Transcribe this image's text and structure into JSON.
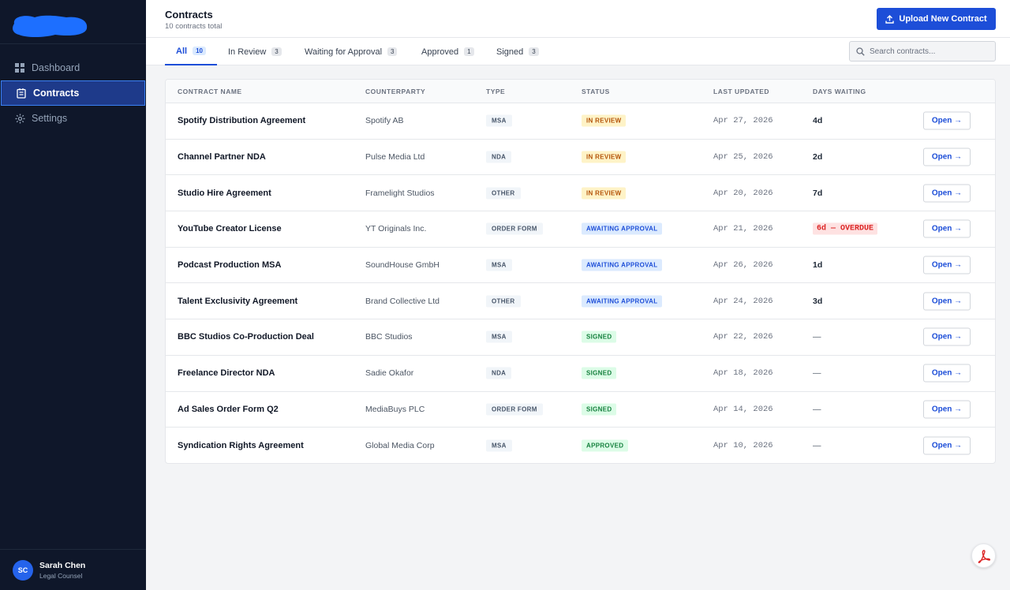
{
  "sidebar": {
    "items": [
      {
        "label": "Dashboard",
        "icon": "grid-icon"
      },
      {
        "label": "Contracts",
        "icon": "document-icon"
      },
      {
        "label": "Settings",
        "icon": "gear-icon"
      }
    ],
    "user": {
      "initials": "SC",
      "name": "Sarah Chen",
      "role": "Legal Counsel"
    }
  },
  "header": {
    "title": "Contracts",
    "subtitle": "10 contracts total",
    "upload_label": "Upload New Contract"
  },
  "tabs": [
    {
      "label": "All",
      "count": "10"
    },
    {
      "label": "In Review",
      "count": "3"
    },
    {
      "label": "Waiting for Approval",
      "count": "3"
    },
    {
      "label": "Approved",
      "count": "1"
    },
    {
      "label": "Signed",
      "count": "3"
    }
  ],
  "search": {
    "placeholder": "Search contracts..."
  },
  "table": {
    "headers": [
      "CONTRACT NAME",
      "COUNTERPARTY",
      "TYPE",
      "STATUS",
      "LAST UPDATED",
      "DAYS WAITING"
    ],
    "open_label": "Open →",
    "rows": [
      {
        "name": "Spotify Distribution Agreement",
        "counterparty": "Spotify AB",
        "type": "MSA",
        "status": "IN REVIEW",
        "updated": "Apr 27, 2026",
        "days": "4d"
      },
      {
        "name": "Channel Partner NDA",
        "counterparty": "Pulse Media Ltd",
        "type": "NDA",
        "status": "IN REVIEW",
        "updated": "Apr 25, 2026",
        "days": "2d"
      },
      {
        "name": "Studio Hire Agreement",
        "counterparty": "Framelight Studios",
        "type": "OTHER",
        "status": "IN REVIEW",
        "updated": "Apr 20, 2026",
        "days": "7d"
      },
      {
        "name": "YouTube Creator License",
        "counterparty": "YT Originals Inc.",
        "type": "ORDER FORM",
        "status": "AWAITING APPROVAL",
        "updated": "Apr 21, 2026",
        "days": "6d — OVERDUE"
      },
      {
        "name": "Podcast Production MSA",
        "counterparty": "SoundHouse GmbH",
        "type": "MSA",
        "status": "AWAITING APPROVAL",
        "updated": "Apr 26, 2026",
        "days": "1d"
      },
      {
        "name": "Talent Exclusivity Agreement",
        "counterparty": "Brand Collective Ltd",
        "type": "OTHER",
        "status": "AWAITING APPROVAL",
        "updated": "Apr 24, 2026",
        "days": "3d"
      },
      {
        "name": "BBC Studios Co-Production Deal",
        "counterparty": "BBC Studios",
        "type": "MSA",
        "status": "SIGNED",
        "updated": "Apr 22, 2026",
        "days": "—"
      },
      {
        "name": "Freelance Director NDA",
        "counterparty": "Sadie Okafor",
        "type": "NDA",
        "status": "SIGNED",
        "updated": "Apr 18, 2026",
        "days": "—"
      },
      {
        "name": "Ad Sales Order Form Q2",
        "counterparty": "MediaBuys PLC",
        "type": "ORDER FORM",
        "status": "SIGNED",
        "updated": "Apr 14, 2026",
        "days": "—"
      },
      {
        "name": "Syndication Rights Agreement",
        "counterparty": "Global Media Corp",
        "type": "MSA",
        "status": "APPROVED",
        "updated": "Apr 10, 2026",
        "days": "—"
      }
    ]
  },
  "colors": {
    "accent": "#1d4ed8",
    "sidebar_bg": "#0f172a",
    "in_review": "#b45309",
    "awaiting_approval": "#1d4ed8",
    "signed": "#15803d",
    "overdue": "#dc2626"
  }
}
